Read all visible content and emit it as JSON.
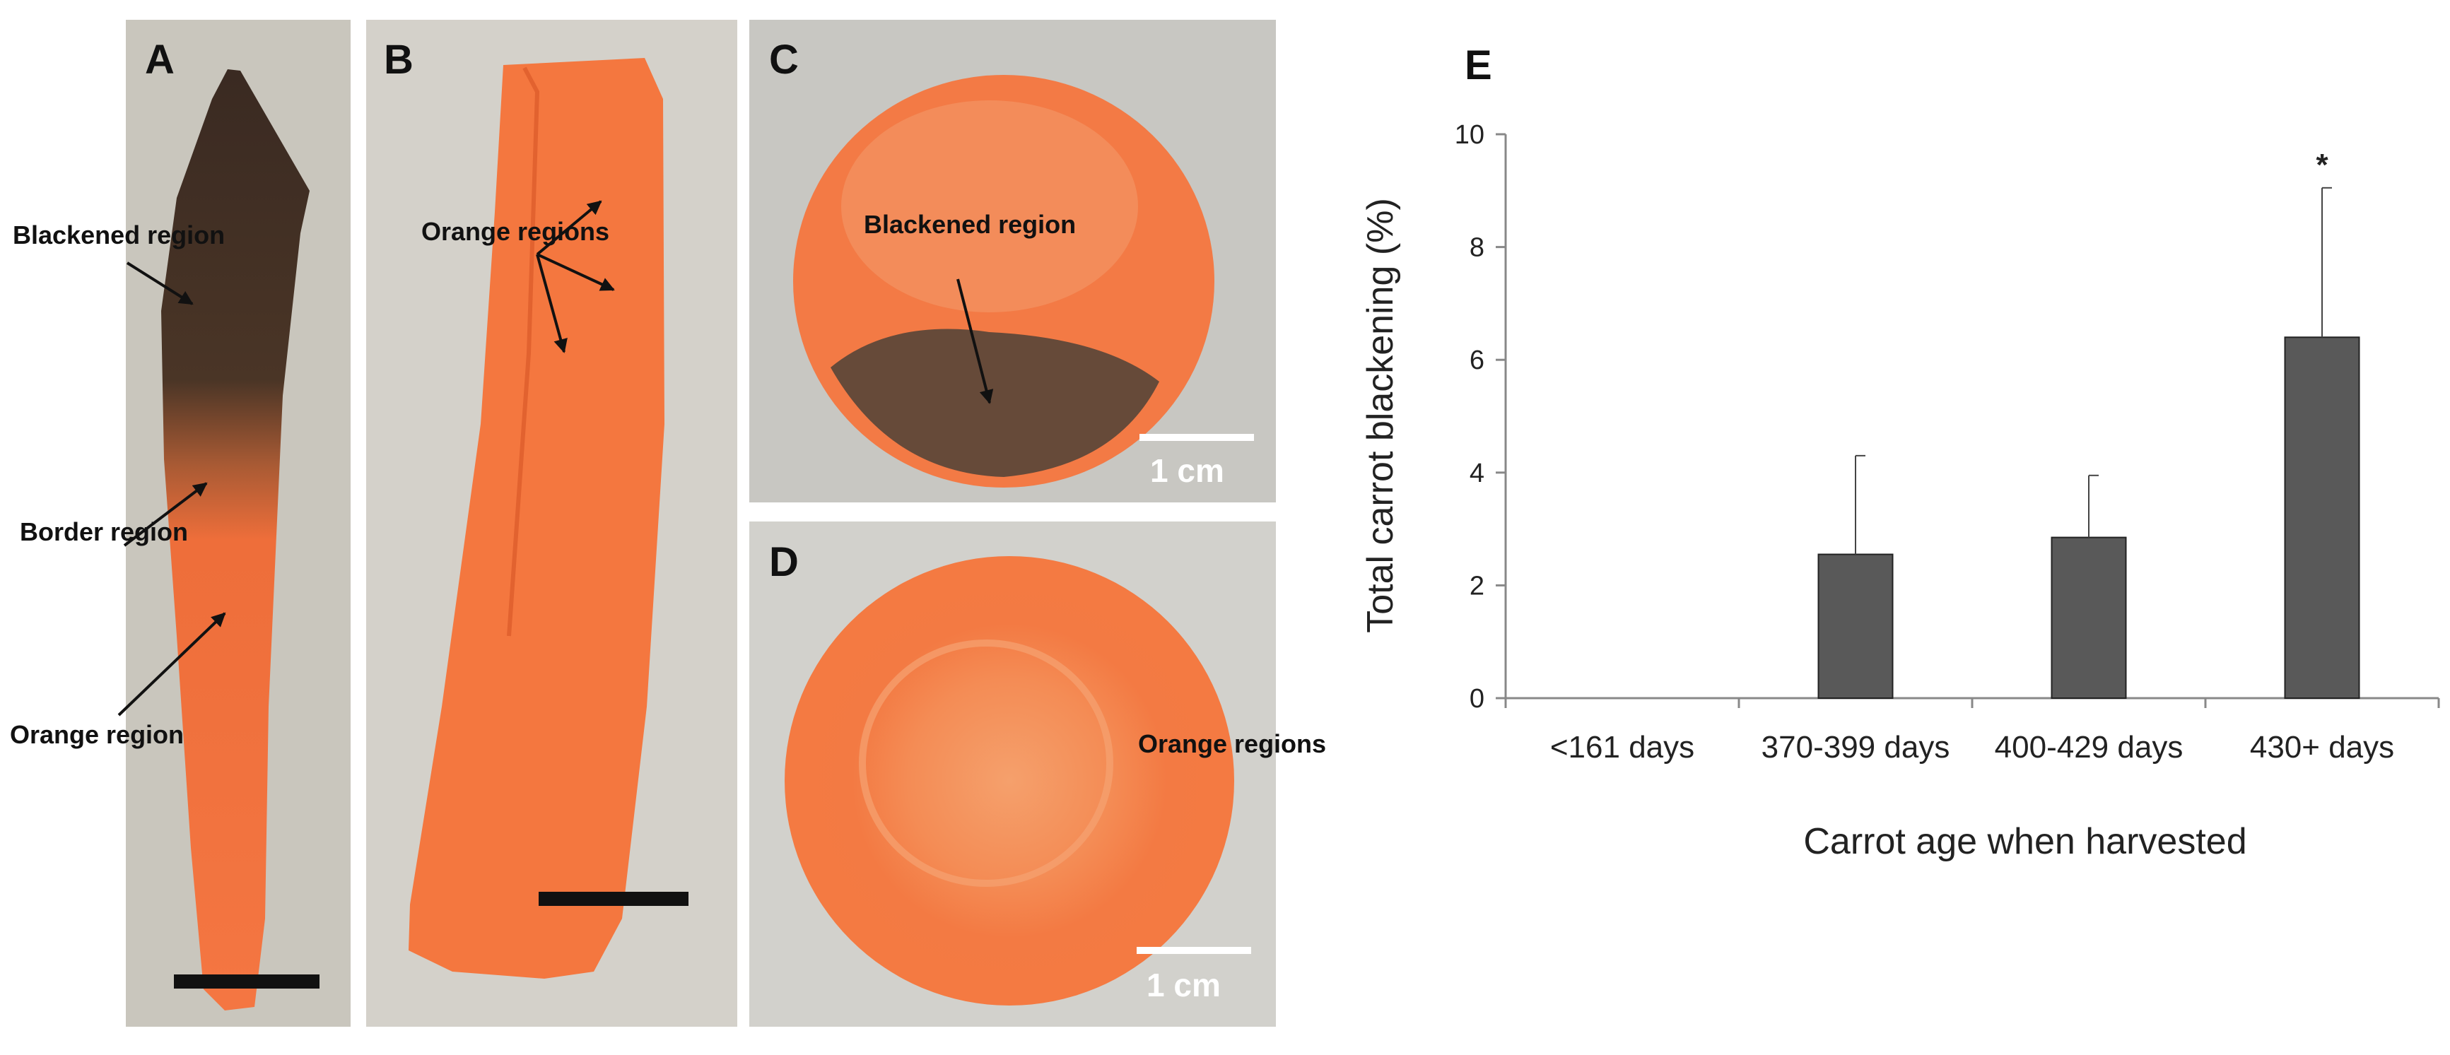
{
  "panels": {
    "A": {
      "letter": "A",
      "labels": [
        "Blackened region",
        "Border region",
        "Orange region"
      ]
    },
    "B": {
      "letter": "B",
      "labels": [
        "Orange regions"
      ]
    },
    "C": {
      "letter": "C",
      "labels": [
        "Blackened region"
      ],
      "scale_bar": "1 cm"
    },
    "D": {
      "letter": "D",
      "labels": [
        "Orange regions"
      ],
      "scale_bar": "1 cm"
    }
  },
  "chart_data": {
    "panel_letter": "E",
    "type": "bar",
    "categories": [
      "<161 days",
      "370-399 days",
      "400-429 days",
      "430+ days"
    ],
    "values": [
      0,
      2.55,
      2.85,
      6.4
    ],
    "errors": [
      0,
      1.75,
      1.1,
      2.65
    ],
    "significance": [
      "",
      "",
      "",
      "*"
    ],
    "xlabel": "Carrot age when harvested",
    "ylabel": "Total carrot blackening (%)",
    "ylim": [
      0,
      10
    ],
    "yticks": [
      0,
      2,
      4,
      6,
      8,
      10
    ],
    "bar_color": "#595959",
    "grid": false
  }
}
